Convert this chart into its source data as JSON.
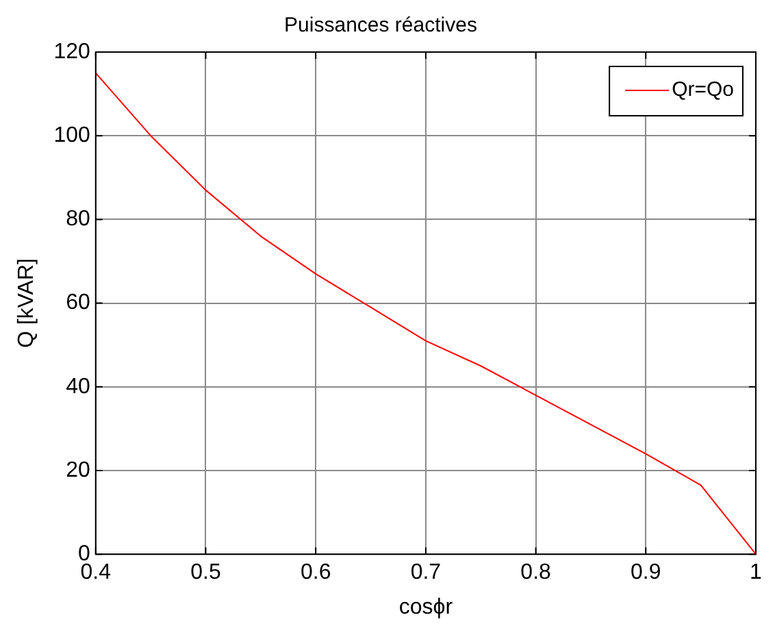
{
  "chart_data": {
    "type": "line",
    "title": "Puissances réactives",
    "xlabel": "cosϕr",
    "ylabel": "Q [kVAR]",
    "x": [
      0.4,
      0.45,
      0.5,
      0.55,
      0.6,
      0.65,
      0.7,
      0.75,
      0.8,
      0.85,
      0.9,
      0.95,
      1.0
    ],
    "series": [
      {
        "name": "Qr=Qo",
        "color": "#ff0000",
        "values": [
          115,
          100,
          87,
          76,
          67,
          59,
          51,
          45,
          38,
          31,
          24,
          16.5,
          0
        ]
      }
    ],
    "xlim": [
      0.4,
      1
    ],
    "xticks": [
      0.4,
      0.5,
      0.6,
      0.7,
      0.8,
      0.9,
      1
    ],
    "ylim": [
      0,
      120
    ],
    "yticks": [
      0,
      20,
      40,
      60,
      80,
      100,
      120
    ],
    "grid": true,
    "legend": "top right",
    "marker": "none",
    "line_style": "solid"
  }
}
